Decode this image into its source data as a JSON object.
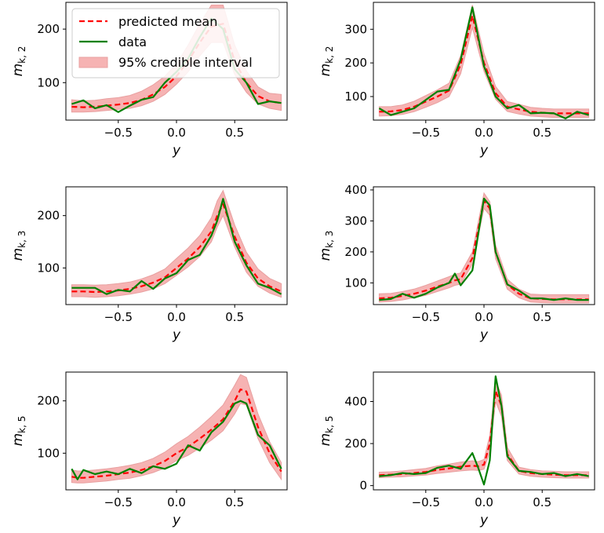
{
  "legend": {
    "mean_label": "predicted mean",
    "data_label": "data",
    "interval_label": "95% credible interval"
  },
  "colors": {
    "mean": "#ff0000",
    "data": "#008000",
    "band_fill": "#f08080",
    "band_edge": "#e8a0a0"
  },
  "chart_data": [
    {
      "type": "line",
      "panel": "top-left",
      "ylabel_main": "m",
      "ylabel_sub": "k, 2",
      "xlabel": "y",
      "xlim": [
        -0.95,
        0.95
      ],
      "ylim": [
        30,
        250
      ],
      "xticks": [
        -0.5,
        0.0,
        0.5
      ],
      "xtick_labels": [
        "−0.5",
        "0.0",
        "0.5"
      ],
      "yticks": [
        100,
        200
      ],
      "ytick_labels": [
        "100",
        "200"
      ],
      "x": [
        -0.9,
        -0.8,
        -0.7,
        -0.6,
        -0.5,
        -0.4,
        -0.3,
        -0.2,
        -0.1,
        0.0,
        0.1,
        0.2,
        0.3,
        0.4,
        0.5,
        0.6,
        0.7,
        0.8,
        0.9
      ],
      "series": [
        {
          "name": "predicted mean",
          "values": [
            55,
            54,
            55,
            57,
            59,
            62,
            68,
            78,
            92,
            112,
            140,
            175,
            205,
            210,
            140,
            100,
            75,
            65,
            62
          ]
        },
        {
          "name": "data",
          "values": [
            60,
            67,
            52,
            58,
            45,
            57,
            68,
            73,
            100,
            120,
            145,
            185,
            220,
            200,
            125,
            100,
            60,
            65,
            62
          ]
        }
      ],
      "band": {
        "lower": [
          45,
          45,
          46,
          48,
          50,
          52,
          57,
          65,
          78,
          97,
          120,
          150,
          175,
          175,
          115,
          82,
          60,
          52,
          48
        ],
        "upper": [
          68,
          66,
          67,
          70,
          72,
          76,
          84,
          96,
          112,
          135,
          170,
          210,
          245,
          245,
          170,
          122,
          92,
          80,
          78
        ]
      }
    },
    {
      "type": "line",
      "panel": "top-right",
      "ylabel_main": "m",
      "ylabel_sub": "k, 2",
      "xlabel": "y",
      "xlim": [
        -0.95,
        0.95
      ],
      "ylim": [
        30,
        380
      ],
      "xticks": [
        -0.5,
        0.0,
        0.5
      ],
      "xtick_labels": [
        "−0.5",
        "0.0",
        "0.5"
      ],
      "yticks": [
        100,
        200,
        300
      ],
      "ytick_labels": [
        "100",
        "200",
        "300"
      ],
      "x": [
        -0.9,
        -0.8,
        -0.7,
        -0.6,
        -0.5,
        -0.4,
        -0.3,
        -0.2,
        -0.1,
        0.0,
        0.1,
        0.2,
        0.3,
        0.4,
        0.5,
        0.6,
        0.7,
        0.8,
        0.9
      ],
      "series": [
        {
          "name": "predicted mean",
          "values": [
            55,
            56,
            60,
            70,
            85,
            100,
            118,
            195,
            340,
            200,
            110,
            70,
            62,
            55,
            52,
            50,
            50,
            50,
            50
          ]
        },
        {
          "name": "data",
          "values": [
            65,
            45,
            55,
            65,
            90,
            115,
            120,
            210,
            365,
            190,
            100,
            65,
            75,
            50,
            52,
            50,
            35,
            55,
            45
          ]
        }
      ],
      "band": {
        "lower": [
          42,
          43,
          47,
          55,
          68,
          82,
          100,
          168,
          305,
          175,
          92,
          56,
          48,
          42,
          40,
          38,
          38,
          38,
          38
        ],
        "upper": [
          70,
          70,
          75,
          86,
          103,
          120,
          140,
          222,
          372,
          228,
          130,
          85,
          77,
          68,
          65,
          63,
          63,
          63,
          63
        ]
      }
    },
    {
      "type": "line",
      "panel": "middle-left",
      "ylabel_main": "m",
      "ylabel_sub": "k, 3",
      "xlabel": "y",
      "xlim": [
        -0.95,
        0.95
      ],
      "ylim": [
        30,
        255
      ],
      "xticks": [
        -0.5,
        0.0,
        0.5
      ],
      "xtick_labels": [
        "−0.5",
        "0.0",
        "0.5"
      ],
      "yticks": [
        100,
        200
      ],
      "ytick_labels": [
        "100",
        "200"
      ],
      "x": [
        -0.9,
        -0.8,
        -0.7,
        -0.6,
        -0.5,
        -0.4,
        -0.3,
        -0.2,
        -0.1,
        0.0,
        0.1,
        0.2,
        0.3,
        0.35,
        0.4,
        0.5,
        0.6,
        0.7,
        0.8,
        0.9
      ],
      "series": [
        {
          "name": "predicted mean",
          "values": [
            55,
            55,
            54,
            55,
            57,
            60,
            65,
            72,
            82,
            100,
            118,
            140,
            170,
            200,
            222,
            160,
            110,
            80,
            65,
            55
          ]
        },
        {
          "name": "data",
          "values": [
            62,
            62,
            62,
            50,
            58,
            55,
            75,
            60,
            80,
            90,
            115,
            125,
            162,
            190,
            232,
            150,
            105,
            70,
            62,
            50
          ]
        }
      ],
      "band": {
        "lower": [
          45,
          45,
          44,
          45,
          47,
          50,
          54,
          60,
          70,
          86,
          102,
          122,
          150,
          178,
          200,
          140,
          92,
          65,
          52,
          44
        ],
        "upper": [
          68,
          68,
          67,
          68,
          70,
          73,
          79,
          87,
          98,
          118,
          138,
          162,
          196,
          228,
          248,
          182,
          130,
          98,
          80,
          70
        ]
      }
    },
    {
      "type": "line",
      "panel": "middle-right",
      "ylabel_main": "m",
      "ylabel_sub": "k, 3",
      "xlabel": "y",
      "xlim": [
        -0.95,
        0.95
      ],
      "ylim": [
        30,
        410
      ],
      "xticks": [
        -0.5,
        0.0,
        0.5
      ],
      "xtick_labels": [
        "−0.5",
        "0.0",
        "0.5"
      ],
      "yticks": [
        100,
        200,
        300,
        400
      ],
      "ytick_labels": [
        "100",
        "200",
        "300",
        "400"
      ],
      "x": [
        -0.9,
        -0.8,
        -0.7,
        -0.6,
        -0.5,
        -0.4,
        -0.3,
        -0.25,
        -0.2,
        -0.1,
        0.0,
        0.05,
        0.1,
        0.2,
        0.3,
        0.4,
        0.5,
        0.6,
        0.7,
        0.8,
        0.9
      ],
      "series": [
        {
          "name": "predicted mean",
          "values": [
            50,
            52,
            58,
            65,
            75,
            88,
            100,
            108,
            112,
            180,
            365,
            340,
            200,
            95,
            65,
            50,
            48,
            47,
            47,
            47,
            47
          ]
        },
        {
          "name": "data",
          "values": [
            45,
            48,
            65,
            52,
            65,
            85,
            100,
            130,
            92,
            140,
            372,
            350,
            200,
            95,
            75,
            50,
            50,
            45,
            50,
            45,
            45
          ]
        }
      ],
      "band": {
        "lower": [
          38,
          40,
          45,
          52,
          60,
          72,
          84,
          92,
          96,
          160,
          340,
          318,
          178,
          80,
          52,
          38,
          36,
          35,
          35,
          35,
          35
        ],
        "upper": [
          65,
          66,
          72,
          80,
          92,
          106,
          120,
          128,
          132,
          200,
          390,
          362,
          222,
          112,
          80,
          64,
          62,
          62,
          62,
          62,
          62
        ]
      }
    },
    {
      "type": "line",
      "panel": "bottom-left",
      "ylabel_main": "m",
      "ylabel_sub": "k, 5",
      "xlabel": "y",
      "xlim": [
        -0.95,
        0.95
      ],
      "ylim": [
        30,
        255
      ],
      "xticks": [
        -0.5,
        0.0,
        0.5
      ],
      "xtick_labels": [
        "−0.5",
        "0.0",
        "0.5"
      ],
      "yticks": [
        100,
        200
      ],
      "ytick_labels": [
        "100",
        "200"
      ],
      "x": [
        -0.9,
        -0.85,
        -0.8,
        -0.7,
        -0.6,
        -0.5,
        -0.4,
        -0.3,
        -0.2,
        -0.1,
        0.0,
        0.1,
        0.2,
        0.3,
        0.4,
        0.5,
        0.55,
        0.6,
        0.7,
        0.8,
        0.9
      ],
      "series": [
        {
          "name": "predicted mean",
          "values": [
            55,
            53,
            53,
            55,
            57,
            60,
            63,
            68,
            75,
            85,
            100,
            112,
            128,
            145,
            165,
            200,
            222,
            218,
            150,
            100,
            65
          ]
        },
        {
          "name": "data",
          "values": [
            70,
            50,
            68,
            60,
            65,
            60,
            70,
            62,
            75,
            70,
            80,
            115,
            105,
            140,
            160,
            195,
            200,
            195,
            135,
            115,
            70
          ]
        }
      ],
      "band": {
        "lower": [
          44,
          43,
          43,
          45,
          47,
          50,
          52,
          57,
          63,
          72,
          86,
          96,
          110,
          125,
          143,
          175,
          195,
          192,
          128,
          82,
          50
        ],
        "upper": [
          68,
          66,
          66,
          68,
          70,
          73,
          77,
          82,
          90,
          102,
          118,
          132,
          150,
          170,
          192,
          230,
          250,
          245,
          175,
          122,
          82
        ]
      }
    },
    {
      "type": "line",
      "panel": "bottom-right",
      "ylabel_main": "m",
      "ylabel_sub": "k, 5",
      "xlabel": "y",
      "xlim": [
        -0.95,
        0.95
      ],
      "ylim": [
        -20,
        540
      ],
      "xticks": [
        -0.5,
        0.0,
        0.5
      ],
      "xtick_labels": [
        "−0.5",
        "0.0",
        "0.5"
      ],
      "yticks": [
        0,
        200,
        400
      ],
      "ytick_labels": [
        "0",
        "200",
        "400"
      ],
      "x": [
        -0.9,
        -0.8,
        -0.7,
        -0.6,
        -0.5,
        -0.4,
        -0.3,
        -0.2,
        -0.1,
        -0.05,
        0.0,
        0.05,
        0.1,
        0.15,
        0.2,
        0.3,
        0.4,
        0.5,
        0.6,
        0.7,
        0.8,
        0.9
      ],
      "series": [
        {
          "name": "predicted mean",
          "values": [
            50,
            52,
            55,
            60,
            65,
            75,
            82,
            90,
            95,
            92,
            100,
            200,
            450,
            380,
            150,
            70,
            60,
            55,
            52,
            50,
            50,
            50
          ]
        },
        {
          "name": "data",
          "values": [
            45,
            50,
            60,
            55,
            60,
            85,
            95,
            80,
            155,
            85,
            5,
            120,
            520,
            380,
            140,
            70,
            65,
            55,
            60,
            45,
            55,
            45
          ]
        }
      ],
      "band": {
        "lower": [
          38,
          40,
          42,
          46,
          50,
          58,
          64,
          70,
          74,
          72,
          78,
          160,
          400,
          330,
          120,
          55,
          45,
          40,
          38,
          36,
          36,
          36
        ],
        "upper": [
          64,
          66,
          70,
          76,
          82,
          94,
          102,
          112,
          118,
          114,
          124,
          240,
          500,
          430,
          182,
          88,
          76,
          70,
          68,
          66,
          66,
          66
        ]
      }
    }
  ]
}
